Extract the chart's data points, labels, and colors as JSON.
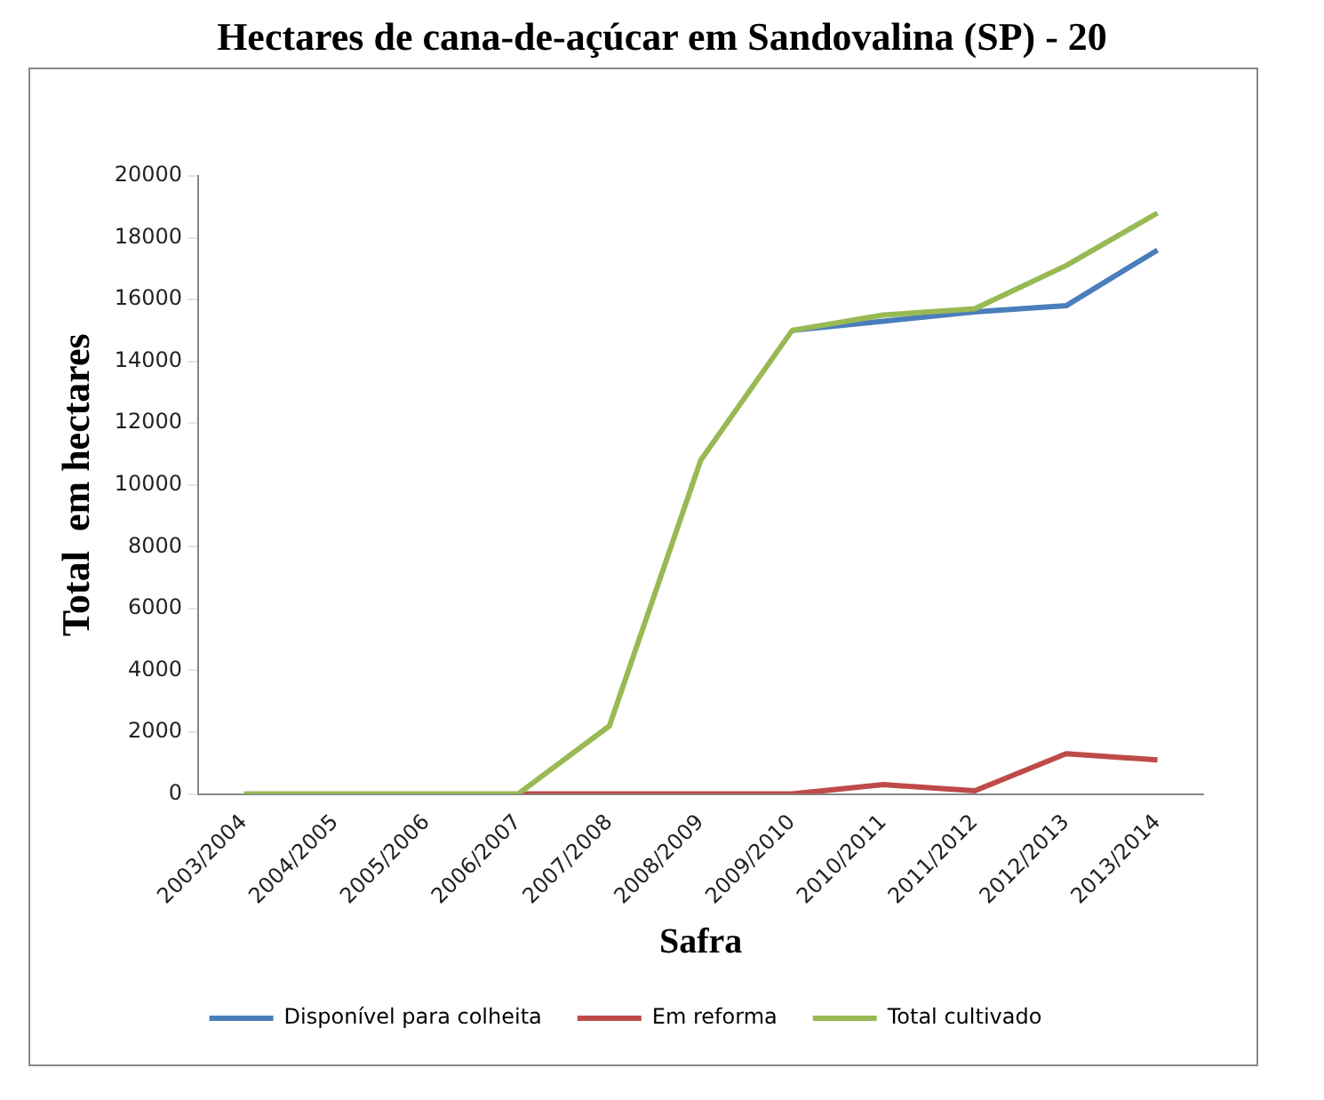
{
  "chart_data": {
    "type": "line",
    "title": "Hectares de cana-de-açúcar em Sandovalina (SP) - 20",
    "xlabel": "Safra",
    "ylabel": "Total  em hectares",
    "categories": [
      "2003/2004",
      "2004/2005",
      "2005/2006",
      "2006/2007",
      "2007/2008",
      "2008/2009",
      "2009/2010",
      "2010/2011",
      "2011/2012",
      "2012/2013",
      "2013/2014"
    ],
    "series": [
      {
        "name": "Disponível para colheita",
        "color": "#4a7ebb",
        "values": [
          null,
          null,
          null,
          null,
          null,
          null,
          15000,
          15300,
          15600,
          15800,
          17600
        ]
      },
      {
        "name": "Em reforma",
        "color": "#be4b48",
        "values": [
          null,
          null,
          null,
          0,
          0,
          0,
          0,
          300,
          100,
          1300,
          1100
        ]
      },
      {
        "name": "Total cultivado",
        "color": "#98b954",
        "values": [
          0,
          0,
          0,
          0,
          2200,
          10800,
          15000,
          15500,
          15700,
          17100,
          18800
        ]
      }
    ],
    "ylim": [
      0,
      20000
    ],
    "yticks": [
      0,
      2000,
      4000,
      6000,
      8000,
      10000,
      12000,
      14000,
      16000,
      18000,
      20000
    ],
    "grid": false,
    "legend": "bottom",
    "marker": "none",
    "line_style": "solid"
  }
}
